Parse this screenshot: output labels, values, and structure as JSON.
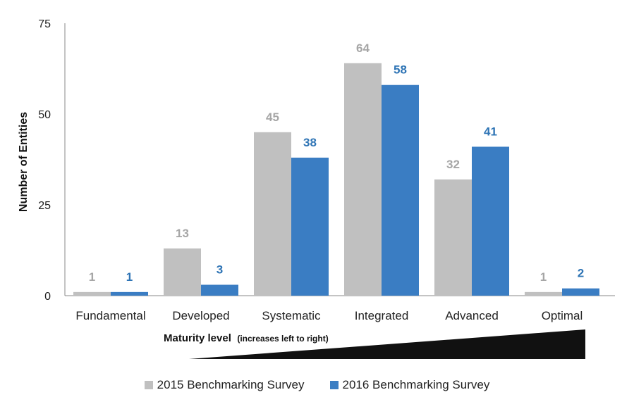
{
  "chart_data": {
    "type": "bar",
    "categories": [
      "Fundamental",
      "Developed",
      "Systematic",
      "Integrated",
      "Advanced",
      "Optimal"
    ],
    "series": [
      {
        "name": "2015 Benchmarking Survey",
        "values": [
          1,
          13,
          45,
          64,
          32,
          1
        ],
        "color": "#c0c0c0",
        "label_color": "#a6a6a6"
      },
      {
        "name": "2016 Benchmarking Survey",
        "values": [
          1,
          3,
          38,
          58,
          41,
          2
        ],
        "color": "#3a7dc3",
        "label_color": "#2e74b5"
      }
    ],
    "ylabel": "Number of Entities",
    "xlabel": "Maturity level",
    "xlabel_note": "(increases left to right)",
    "ylim": [
      0,
      75
    ],
    "yticks": [
      0,
      25,
      50,
      75
    ],
    "grid": false,
    "legend_position": "bottom"
  }
}
